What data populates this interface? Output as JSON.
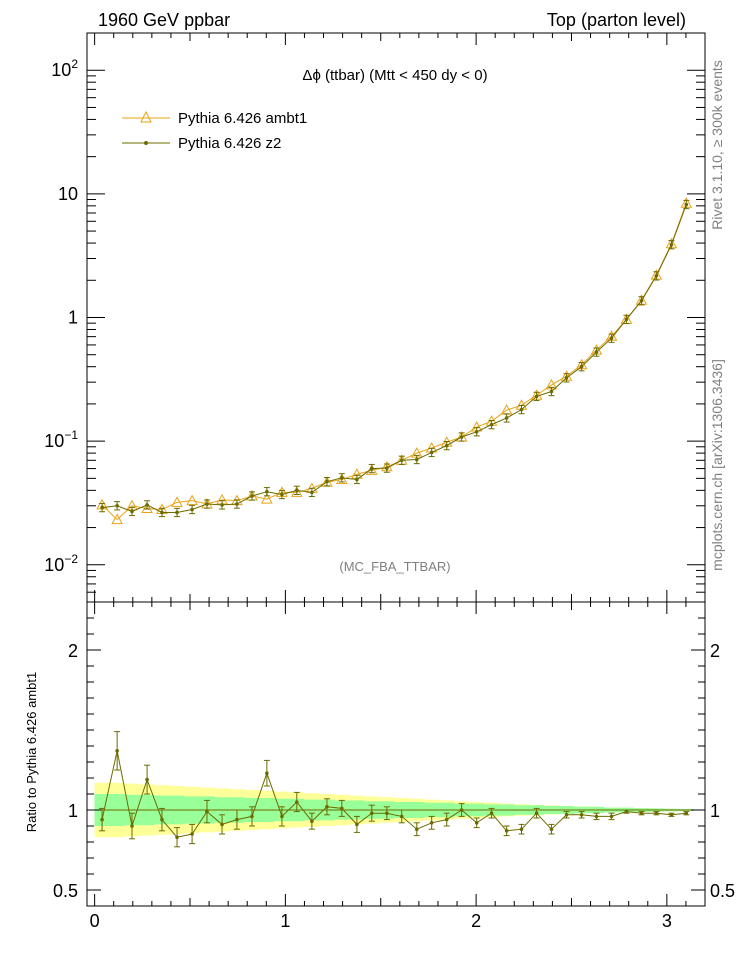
{
  "header": {
    "left": "1960 GeV ppbar",
    "right": "Top (parton level)"
  },
  "side": {
    "rivet": "Rivet 3.1.10, ≥ 300k events",
    "mcplots": "mcplots.cern.ch [arXiv:1306.3436]"
  },
  "plot_title": "Δϕ (ttbar) (Mtt < 450 dy < 0)",
  "analysis_tag": "(MC_FBA_TTBAR)",
  "legend": [
    {
      "label": "Pythia 6.426 ambt1",
      "color": "#e8a317",
      "marker": "open-triangle"
    },
    {
      "label": "Pythia 6.426 z2",
      "color": "#6b6b00",
      "marker": "filled-dot"
    }
  ],
  "ratio_ylabel": "Ratio to Pythia 6.426 ambt1",
  "top_ytick_labels": [
    {
      "v": 100,
      "base": "10",
      "exp": "2"
    },
    {
      "v": 10,
      "base": "10",
      "exp": ""
    },
    {
      "v": 1,
      "base": "1",
      "exp": ""
    },
    {
      "v": 0.1,
      "base": "10",
      "exp": "−1"
    },
    {
      "v": 0.01,
      "base": "10",
      "exp": "−2"
    }
  ],
  "ratio_ytick_labels": [
    "2",
    "1",
    "0.5"
  ],
  "x_tick_labels": [
    "0",
    "1",
    "2",
    "3"
  ],
  "colors": {
    "ambt1": "#e8a317",
    "z2": "#6b6b00",
    "band_outer": "#ffff99",
    "band_inner": "#99ff99"
  },
  "chart_data": {
    "type": "line",
    "xlim": [
      -0.04,
      3.2
    ],
    "ylim_main": [
      0.005,
      200
    ],
    "ylog": true,
    "ylim_ratio": [
      0.4,
      2.3
    ],
    "x": [
      0.039,
      0.118,
      0.196,
      0.275,
      0.353,
      0.432,
      0.511,
      0.589,
      0.668,
      0.746,
      0.825,
      0.903,
      0.982,
      1.06,
      1.139,
      1.218,
      1.296,
      1.375,
      1.453,
      1.532,
      1.61,
      1.689,
      1.767,
      1.846,
      1.924,
      2.003,
      2.081,
      2.16,
      2.238,
      2.317,
      2.395,
      2.474,
      2.553,
      2.631,
      2.71,
      2.788,
      2.867,
      2.945,
      3.024,
      3.102
    ],
    "series": [
      {
        "name": "Pythia 6.426 ambt1",
        "values": [
          0.0305,
          0.0232,
          0.03,
          0.0285,
          0.028,
          0.032,
          0.033,
          0.031,
          0.0335,
          0.033,
          0.036,
          0.034,
          0.0385,
          0.0385,
          0.0415,
          0.0465,
          0.049,
          0.054,
          0.058,
          0.062,
          0.07,
          0.08,
          0.088,
          0.098,
          0.108,
          0.13,
          0.145,
          0.178,
          0.195,
          0.235,
          0.285,
          0.335,
          0.415,
          0.545,
          0.705,
          0.965,
          1.38,
          2.2,
          3.95,
          8.4
        ]
      },
      {
        "name": "Pythia 6.426 z2",
        "values": [
          0.029,
          0.03,
          0.027,
          0.0305,
          0.0265,
          0.0265,
          0.028,
          0.031,
          0.0305,
          0.031,
          0.036,
          0.039,
          0.037,
          0.04,
          0.0385,
          0.047,
          0.0505,
          0.049,
          0.06,
          0.0605,
          0.07,
          0.071,
          0.081,
          0.092,
          0.108,
          0.119,
          0.136,
          0.154,
          0.18,
          0.23,
          0.252,
          0.325,
          0.4,
          0.525,
          0.68,
          0.965,
          1.365,
          2.17,
          3.88,
          8.2
        ]
      }
    ],
    "ratio": {
      "values": [
        0.94,
        1.37,
        0.9,
        1.19,
        0.94,
        0.83,
        0.85,
        0.99,
        0.91,
        0.94,
        0.96,
        1.23,
        0.96,
        1.05,
        0.93,
        1.02,
        1.01,
        0.91,
        0.98,
        0.98,
        0.96,
        0.88,
        0.92,
        0.94,
        1.0,
        0.92,
        0.98,
        0.87,
        0.88,
        0.98,
        0.88,
        0.97,
        0.97,
        0.96,
        0.96,
        0.99,
        0.98,
        0.98,
        0.97,
        0.98
      ],
      "errors": [
        0.07,
        0.12,
        0.08,
        0.09,
        0.07,
        0.06,
        0.06,
        0.07,
        0.06,
        0.06,
        0.06,
        0.08,
        0.06,
        0.06,
        0.05,
        0.05,
        0.05,
        0.05,
        0.05,
        0.04,
        0.04,
        0.04,
        0.04,
        0.04,
        0.04,
        0.03,
        0.03,
        0.03,
        0.03,
        0.03,
        0.03,
        0.02,
        0.02,
        0.02,
        0.02,
        0.01,
        0.01,
        0.01,
        0.01,
        0.01
      ],
      "band_inner": [
        0.1,
        0.1,
        0.095,
        0.095,
        0.09,
        0.09,
        0.085,
        0.085,
        0.08,
        0.08,
        0.075,
        0.075,
        0.07,
        0.07,
        0.065,
        0.065,
        0.06,
        0.06,
        0.055,
        0.055,
        0.05,
        0.05,
        0.045,
        0.045,
        0.04,
        0.04,
        0.035,
        0.035,
        0.03,
        0.03,
        0.025,
        0.025,
        0.02,
        0.02,
        0.015,
        0.015,
        0.012,
        0.01,
        0.008,
        0.006
      ],
      "band_outer": [
        0.17,
        0.17,
        0.165,
        0.16,
        0.155,
        0.15,
        0.145,
        0.14,
        0.135,
        0.13,
        0.125,
        0.12,
        0.115,
        0.11,
        0.105,
        0.1,
        0.095,
        0.09,
        0.085,
        0.08,
        0.075,
        0.07,
        0.065,
        0.06,
        0.055,
        0.05,
        0.045,
        0.04,
        0.036,
        0.032,
        0.028,
        0.025,
        0.022,
        0.019,
        0.016,
        0.014,
        0.012,
        0.01,
        0.008,
        0.006
      ]
    }
  }
}
